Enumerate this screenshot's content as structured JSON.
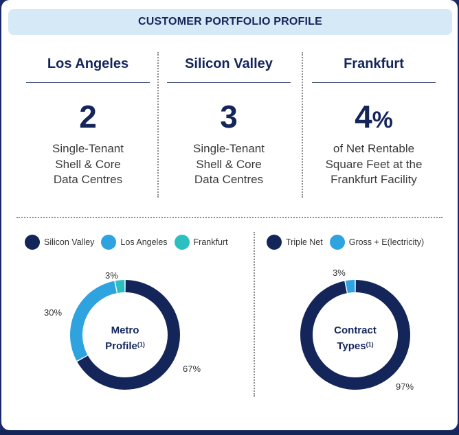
{
  "title": "CUSTOMER PORTFOLIO PROFILE",
  "columns": [
    {
      "city": "Los Angeles",
      "big": "2",
      "suffix": "",
      "desc": [
        "Single-Tenant",
        "Shell & Core",
        "Data Centres"
      ]
    },
    {
      "city": "Silicon Valley",
      "big": "3",
      "suffix": "",
      "desc": [
        "Single-Tenant",
        "Shell & Core",
        "Data Centres"
      ]
    },
    {
      "city": "Frankfurt",
      "big": "4",
      "suffix": "%",
      "desc": [
        "of Net Rentable",
        "Square Feet at the",
        "Frankfurt Facility"
      ]
    }
  ],
  "colors": {
    "navy": "#14255a",
    "blue": "#2ea3e0",
    "teal": "#2bbfc1"
  },
  "chart_data": [
    {
      "type": "pie",
      "variant": "donut",
      "title": "Metro Profile",
      "title_lines": [
        "Metro",
        "Profile"
      ],
      "footnote": "(1)",
      "categories": [
        "Silicon Valley",
        "Los Angeles",
        "Frankfurt"
      ],
      "values": [
        67,
        30,
        3
      ],
      "labels": [
        "67%",
        "30%",
        "3%"
      ],
      "colors": [
        "#14255a",
        "#2ea3e0",
        "#2bbfc1"
      ],
      "legend_position": "top"
    },
    {
      "type": "pie",
      "variant": "donut",
      "title": "Contract Types",
      "title_lines": [
        "Contract",
        "Types"
      ],
      "footnote": "(1)",
      "categories": [
        "Triple Net",
        "Gross + E(lectricity)"
      ],
      "values": [
        97,
        3
      ],
      "labels": [
        "97%",
        "3%"
      ],
      "colors": [
        "#14255a",
        "#2ea3e0"
      ],
      "legend_position": "top"
    }
  ]
}
